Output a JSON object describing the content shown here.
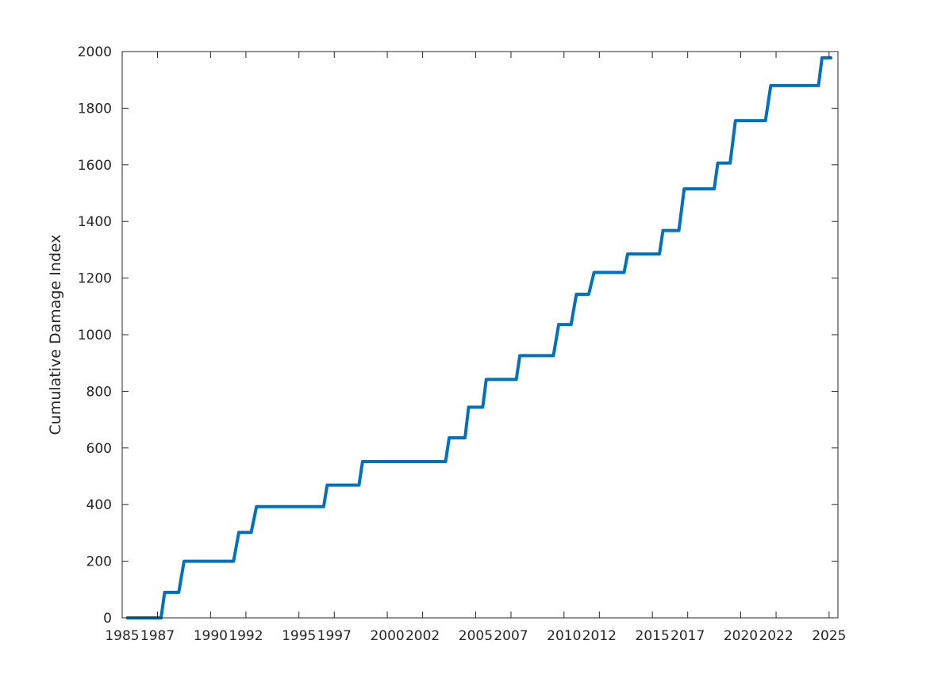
{
  "chart_data": {
    "type": "line",
    "title": "",
    "xlabel": "",
    "ylabel": "Cumulative Damage Index",
    "xlim": [
      1985.0,
      2025.5
    ],
    "ylim": [
      0,
      2000
    ],
    "x_ticks": [
      1985,
      1987,
      1990,
      1992,
      1995,
      1997,
      2000,
      2002,
      2005,
      2007,
      2010,
      2012,
      2015,
      2017,
      2020,
      2022,
      2025
    ],
    "y_ticks": [
      0,
      200,
      400,
      600,
      800,
      1000,
      1200,
      1400,
      1600,
      1800,
      2000
    ],
    "grid": false,
    "line_color": "#0072BD",
    "series": [
      {
        "x": [
          1985.3,
          1987.2,
          1987.4,
          1988.2,
          1988.5,
          1991.3,
          1991.6,
          1992.3,
          1992.6,
          1996.4,
          1996.6,
          1998.4,
          1998.6,
          2003.3,
          2003.5,
          2004.4,
          2004.6,
          2005.4,
          2005.6,
          2007.3,
          2007.5,
          2009.4,
          2009.7,
          2010.4,
          2010.7,
          2011.4,
          2011.7,
          2013.4,
          2013.6,
          2015.4,
          2015.6,
          2016.5,
          2016.8,
          2018.5,
          2018.7,
          2019.4,
          2019.7,
          2021.4,
          2021.7,
          2024.4,
          2024.6,
          2025.1
        ],
        "y": [
          0,
          0,
          90,
          90,
          200,
          200,
          302,
          302,
          393,
          393,
          469,
          469,
          552,
          552,
          636,
          636,
          744,
          744,
          842,
          842,
          926,
          926,
          1036,
          1036,
          1143,
          1143,
          1220,
          1220,
          1285,
          1285,
          1368,
          1368,
          1515,
          1515,
          1606,
          1606,
          1756,
          1756,
          1880,
          1880,
          1978,
          1978
        ]
      }
    ]
  }
}
